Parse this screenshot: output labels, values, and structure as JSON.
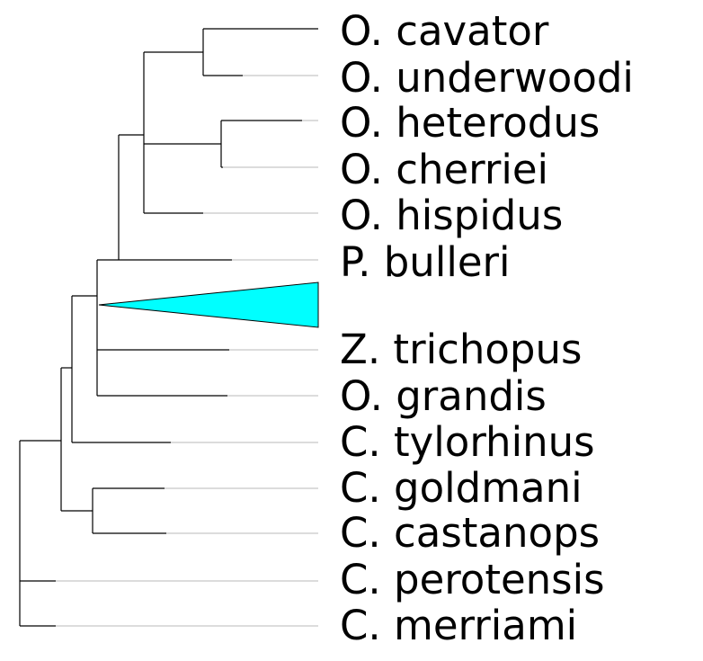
{
  "tree": {
    "taxa": [
      "O. cavator",
      "O. underwoodi",
      "O. heterodus",
      "O. cherriei",
      "O. hispidus",
      "P. bulleri",
      "Z. trichopus",
      "O. grandis",
      "C. tylorhinus",
      "C. goldmani",
      "C. castanops",
      "C. perotensis",
      "C. merriami"
    ],
    "collapsed_clade_color": "#00ffff",
    "branch_color": "#000000",
    "extension_color": "#c8c8c8"
  }
}
